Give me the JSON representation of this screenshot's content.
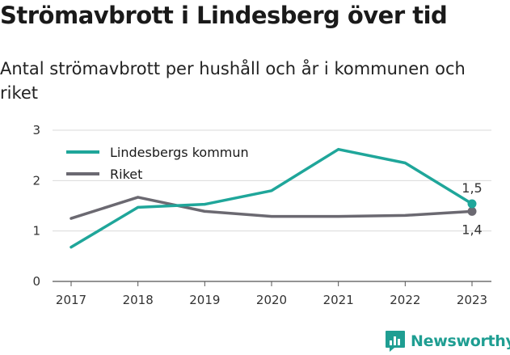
{
  "title": "Strömavbrott i Lindesberg över tid",
  "subtitle": "Antal strömavbrott per hushåll och år i kommunen och riket",
  "brand": "Newsworthy",
  "brand_icon": "bar-chart-icon",
  "colors": {
    "lindesberg": "#1fa69a",
    "riket": "#6b6971",
    "grid": "#d9d9d9",
    "brand": "#1f9e92"
  },
  "chart_data": {
    "type": "line",
    "x": [
      2017,
      2018,
      2019,
      2020,
      2021,
      2022,
      2023
    ],
    "ylim": [
      0,
      3
    ],
    "yticks": [
      0,
      1,
      2,
      3
    ],
    "grid": true,
    "legend_position": "top-left",
    "series": [
      {
        "name": "Lindesbergs kommun",
        "color": "#1fa69a",
        "values": [
          0.68,
          1.47,
          1.53,
          1.8,
          2.62,
          2.35,
          1.54
        ],
        "end_label": "1,5"
      },
      {
        "name": "Riket",
        "color": "#6b6971",
        "values": [
          1.25,
          1.67,
          1.39,
          1.29,
          1.29,
          1.31,
          1.39
        ],
        "end_label": "1,4"
      }
    ]
  }
}
